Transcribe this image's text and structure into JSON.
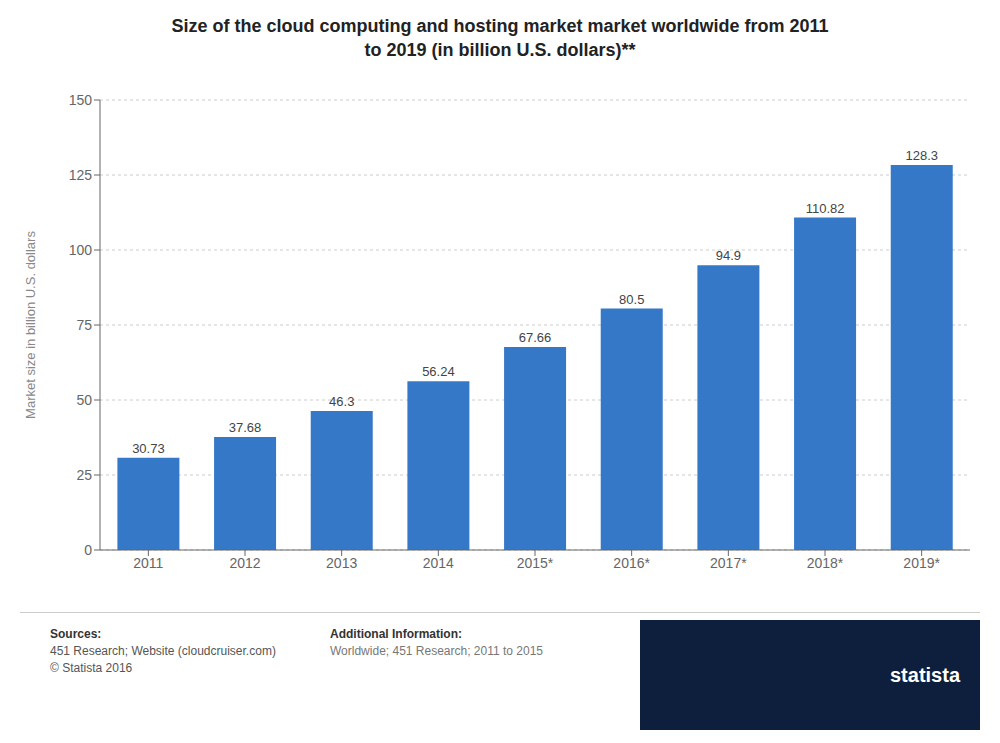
{
  "chart_data": {
    "type": "bar",
    "title": "Size of the cloud computing and hosting market market worldwide from 2011\nto 2019 (in billion U.S. dollars)**",
    "categories": [
      "2011",
      "2012",
      "2013",
      "2014",
      "2015*",
      "2016*",
      "2017*",
      "2018*",
      "2019*"
    ],
    "values": [
      30.73,
      37.68,
      46.3,
      56.24,
      67.66,
      80.5,
      94.9,
      110.82,
      128.3
    ],
    "color": "#3578c8",
    "ylabel": "Market size in billion U.S. dollars",
    "ylim": [
      0,
      150
    ],
    "yticks": [
      0,
      25,
      50,
      75,
      100,
      125,
      150
    ],
    "grid": true,
    "data_labels": true,
    "annotations": [
      "Sources:",
      "451 Research; Website (cloudcruiser.com)\n© Statista 2016",
      "Additional Information:",
      "Worldwide; 451 Research; 2011 to 2015",
      "statista"
    ]
  }
}
